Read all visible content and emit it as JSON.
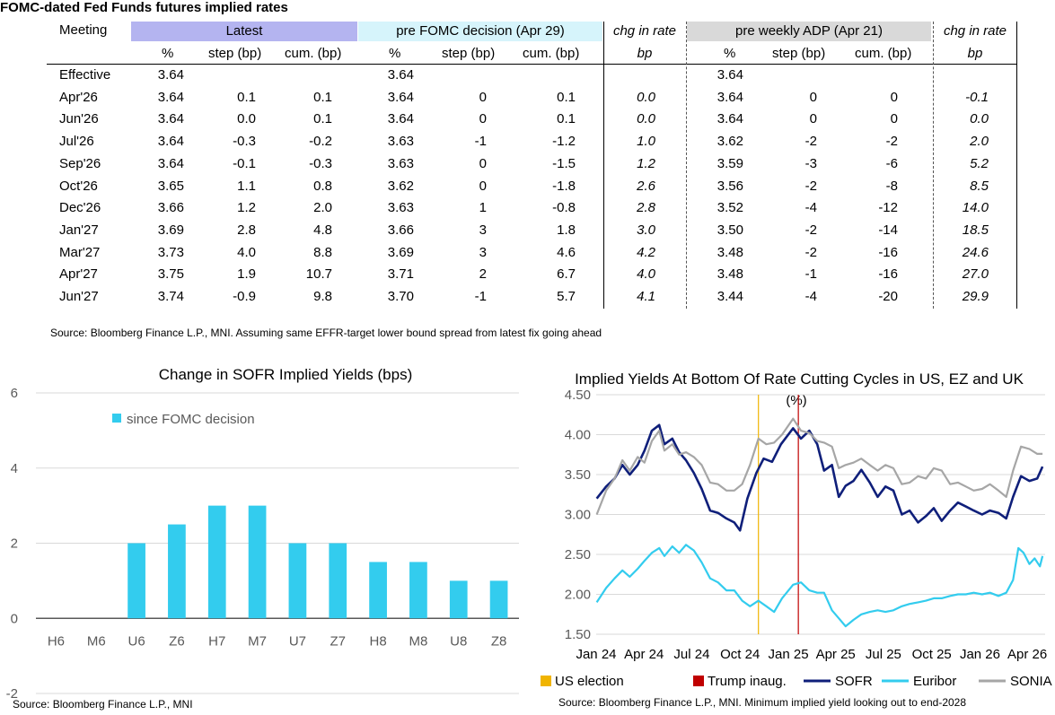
{
  "table": {
    "title": "FOMC-dated Fed Funds futures implied rates",
    "meeting_header": "Meeting",
    "groups": {
      "latest": "Latest",
      "pre_fomc": "pre FOMC decision (Apr 29)",
      "chg1": "chg in rate",
      "pre_adp": "pre weekly ADP (Apr 21)",
      "chg2": "chg in rate"
    },
    "subheaders": {
      "pct": "%",
      "step": "step (bp)",
      "cum": "cum. (bp)",
      "bp": "bp"
    },
    "rows": [
      [
        "Effective",
        "3.64",
        "",
        "",
        "3.64",
        "",
        "",
        "",
        "3.64",
        "",
        "",
        ""
      ],
      [
        "Apr'26",
        "3.64",
        "0.1",
        "0.1",
        "3.64",
        "0",
        "0.1",
        "0.0",
        "3.64",
        "0",
        "0",
        "-0.1"
      ],
      [
        "Jun'26",
        "3.64",
        "0.0",
        "0.1",
        "3.64",
        "0",
        "0.1",
        "0.0",
        "3.64",
        "0",
        "0",
        "0.0"
      ],
      [
        "Jul'26",
        "3.64",
        "-0.3",
        "-0.2",
        "3.63",
        "-1",
        "-1.2",
        "1.0",
        "3.62",
        "-2",
        "-2",
        "2.0"
      ],
      [
        "Sep'26",
        "3.64",
        "-0.1",
        "-0.3",
        "3.63",
        "0",
        "-1.5",
        "1.2",
        "3.59",
        "-3",
        "-6",
        "5.2"
      ],
      [
        "Oct'26",
        "3.65",
        "1.1",
        "0.8",
        "3.62",
        "0",
        "-1.8",
        "2.6",
        "3.56",
        "-2",
        "-8",
        "8.5"
      ],
      [
        "Dec'26",
        "3.66",
        "1.2",
        "2.0",
        "3.63",
        "1",
        "-0.8",
        "2.8",
        "3.52",
        "-4",
        "-12",
        "14.0"
      ],
      [
        "Jan'27",
        "3.69",
        "2.8",
        "4.8",
        "3.66",
        "3",
        "1.8",
        "3.0",
        "3.50",
        "-2",
        "-14",
        "18.5"
      ],
      [
        "Mar'27",
        "3.73",
        "4.0",
        "8.8",
        "3.69",
        "3",
        "4.6",
        "4.2",
        "3.48",
        "-2",
        "-16",
        "24.6"
      ],
      [
        "Apr'27",
        "3.75",
        "1.9",
        "10.7",
        "3.71",
        "2",
        "6.7",
        "4.0",
        "3.48",
        "-1",
        "-16",
        "27.0"
      ],
      [
        "Jun'27",
        "3.74",
        "-0.9",
        "9.8",
        "3.70",
        "-1",
        "5.7",
        "4.1",
        "3.44",
        "-4",
        "-20",
        "29.9"
      ]
    ],
    "source": "Source: Bloomberg Finance L.P., MNI. Assuming same  EFFR-target lower bound spread from latest fix going ahead",
    "colors": {
      "latest": "#b4b4f0",
      "pre_fomc": "#d6f4fb",
      "pre_adp": "#d9d9d9"
    }
  },
  "chart_data": [
    {
      "type": "bar",
      "title": "Change in SOFR Implied Yields (bps)",
      "categories": [
        "H6",
        "M6",
        "U6",
        "Z6",
        "H7",
        "M7",
        "U7",
        "Z7",
        "H8",
        "M8",
        "U8",
        "Z8"
      ],
      "series": [
        {
          "name": "since FOMC decision",
          "values": [
            0,
            0,
            2,
            2.5,
            3,
            3,
            2,
            2,
            1.5,
            1.5,
            1,
            1
          ],
          "color": "#33ccee"
        }
      ],
      "ylim": [
        -2,
        6
      ],
      "yticks": [
        -2,
        0,
        2,
        4,
        6
      ],
      "grid": true,
      "legend": "top-left",
      "source": "Source: Bloomberg Finance L.P., MNI"
    },
    {
      "type": "line",
      "title": "Implied Yields At Bottom Of Rate Cutting Cycles in US, EZ and UK",
      "subtitle": "(%)",
      "ylim": [
        1.5,
        4.5
      ],
      "yticks": [
        "1.50",
        "2.00",
        "2.50",
        "3.00",
        "3.50",
        "4.00",
        "4.50"
      ],
      "xticks": [
        "Jan 24",
        "Apr 24",
        "Jul 24",
        "Oct 24",
        "Jan 25",
        "Apr 25",
        "Jul 25",
        "Oct 25",
        "Jan 26",
        "Apr 26"
      ],
      "grid": true,
      "legend": "bottom",
      "events": [
        {
          "name": "US election",
          "date": "2024-11-05",
          "color": "#f0b400"
        },
        {
          "name": "Trump inaug.",
          "date": "2025-01-20",
          "color": "#c00000"
        }
      ],
      "series": [
        {
          "name": "SOFR",
          "color": "#0f1f7a",
          "points": [
            [
              "2024-01-02",
              3.2
            ],
            [
              "2024-01-20",
              3.35
            ],
            [
              "2024-02-05",
              3.45
            ],
            [
              "2024-02-20",
              3.62
            ],
            [
              "2024-03-05",
              3.5
            ],
            [
              "2024-03-20",
              3.62
            ],
            [
              "2024-04-02",
              3.8
            ],
            [
              "2024-04-16",
              4.05
            ],
            [
              "2024-04-30",
              4.12
            ],
            [
              "2024-05-10",
              3.88
            ],
            [
              "2024-05-25",
              3.95
            ],
            [
              "2024-06-07",
              3.78
            ],
            [
              "2024-06-20",
              3.68
            ],
            [
              "2024-07-05",
              3.52
            ],
            [
              "2024-07-20",
              3.32
            ],
            [
              "2024-08-05",
              3.05
            ],
            [
              "2024-08-20",
              3.02
            ],
            [
              "2024-09-05",
              2.95
            ],
            [
              "2024-09-20",
              2.9
            ],
            [
              "2024-10-01",
              2.8
            ],
            [
              "2024-10-15",
              3.2
            ],
            [
              "2024-11-01",
              3.52
            ],
            [
              "2024-11-15",
              3.7
            ],
            [
              "2024-12-01",
              3.66
            ],
            [
              "2024-12-18",
              3.88
            ],
            [
              "2025-01-10",
              4.08
            ],
            [
              "2025-01-25",
              3.95
            ],
            [
              "2025-02-10",
              4.05
            ],
            [
              "2025-02-25",
              3.88
            ],
            [
              "2025-03-10",
              3.55
            ],
            [
              "2025-03-25",
              3.62
            ],
            [
              "2025-04-07",
              3.22
            ],
            [
              "2025-04-20",
              3.36
            ],
            [
              "2025-05-05",
              3.42
            ],
            [
              "2025-05-20",
              3.56
            ],
            [
              "2025-06-05",
              3.4
            ],
            [
              "2025-06-20",
              3.22
            ],
            [
              "2025-07-05",
              3.35
            ],
            [
              "2025-07-20",
              3.3
            ],
            [
              "2025-08-05",
              3.0
            ],
            [
              "2025-08-20",
              3.05
            ],
            [
              "2025-09-05",
              2.9
            ],
            [
              "2025-09-20",
              2.98
            ],
            [
              "2025-10-05",
              3.08
            ],
            [
              "2025-10-20",
              2.92
            ],
            [
              "2025-11-05",
              3.05
            ],
            [
              "2025-11-20",
              3.15
            ],
            [
              "2025-12-05",
              3.1
            ],
            [
              "2025-12-20",
              3.05
            ],
            [
              "2026-01-05",
              3.0
            ],
            [
              "2026-01-20",
              3.05
            ],
            [
              "2026-02-05",
              3.02
            ],
            [
              "2026-02-20",
              2.95
            ],
            [
              "2026-03-05",
              3.22
            ],
            [
              "2026-03-20",
              3.48
            ],
            [
              "2026-04-05",
              3.42
            ],
            [
              "2026-04-20",
              3.45
            ],
            [
              "2026-04-30",
              3.6
            ]
          ]
        },
        {
          "name": "Euribor",
          "color": "#33ccee",
          "points": [
            [
              "2024-01-02",
              1.9
            ],
            [
              "2024-01-20",
              2.08
            ],
            [
              "2024-02-05",
              2.2
            ],
            [
              "2024-02-20",
              2.3
            ],
            [
              "2024-03-05",
              2.22
            ],
            [
              "2024-03-20",
              2.32
            ],
            [
              "2024-04-02",
              2.42
            ],
            [
              "2024-04-16",
              2.52
            ],
            [
              "2024-04-30",
              2.58
            ],
            [
              "2024-05-10",
              2.48
            ],
            [
              "2024-05-25",
              2.6
            ],
            [
              "2024-06-07",
              2.52
            ],
            [
              "2024-06-20",
              2.62
            ],
            [
              "2024-07-05",
              2.55
            ],
            [
              "2024-07-20",
              2.4
            ],
            [
              "2024-08-05",
              2.2
            ],
            [
              "2024-08-20",
              2.15
            ],
            [
              "2024-09-05",
              2.05
            ],
            [
              "2024-09-20",
              2.05
            ],
            [
              "2024-10-05",
              1.92
            ],
            [
              "2024-10-20",
              1.85
            ],
            [
              "2024-11-05",
              1.92
            ],
            [
              "2024-11-20",
              1.85
            ],
            [
              "2024-12-05",
              1.78
            ],
            [
              "2024-12-20",
              1.95
            ],
            [
              "2025-01-10",
              2.12
            ],
            [
              "2025-01-25",
              2.15
            ],
            [
              "2025-02-10",
              2.05
            ],
            [
              "2025-02-25",
              2.02
            ],
            [
              "2025-03-10",
              2.02
            ],
            [
              "2025-03-25",
              1.8
            ],
            [
              "2025-04-07",
              1.7
            ],
            [
              "2025-04-20",
              1.6
            ],
            [
              "2025-05-05",
              1.68
            ],
            [
              "2025-05-20",
              1.75
            ],
            [
              "2025-06-05",
              1.78
            ],
            [
              "2025-06-20",
              1.8
            ],
            [
              "2025-07-05",
              1.78
            ],
            [
              "2025-07-20",
              1.8
            ],
            [
              "2025-08-05",
              1.85
            ],
            [
              "2025-08-20",
              1.88
            ],
            [
              "2025-09-05",
              1.9
            ],
            [
              "2025-09-20",
              1.92
            ],
            [
              "2025-10-05",
              1.95
            ],
            [
              "2025-10-20",
              1.95
            ],
            [
              "2025-11-05",
              1.98
            ],
            [
              "2025-11-20",
              2.0
            ],
            [
              "2025-12-05",
              2.0
            ],
            [
              "2025-12-20",
              2.02
            ],
            [
              "2026-01-05",
              2.0
            ],
            [
              "2026-01-20",
              2.02
            ],
            [
              "2026-02-05",
              1.98
            ],
            [
              "2026-02-20",
              2.02
            ],
            [
              "2026-03-05",
              2.18
            ],
            [
              "2026-03-15",
              2.58
            ],
            [
              "2026-03-25",
              2.52
            ],
            [
              "2026-04-05",
              2.38
            ],
            [
              "2026-04-15",
              2.45
            ],
            [
              "2026-04-25",
              2.35
            ],
            [
              "2026-04-30",
              2.48
            ]
          ]
        },
        {
          "name": "SONIA",
          "color": "#a6a6a6",
          "points": [
            [
              "2024-01-02",
              3.0
            ],
            [
              "2024-01-20",
              3.3
            ],
            [
              "2024-02-05",
              3.45
            ],
            [
              "2024-02-20",
              3.68
            ],
            [
              "2024-03-05",
              3.55
            ],
            [
              "2024-03-20",
              3.72
            ],
            [
              "2024-04-02",
              3.65
            ],
            [
              "2024-04-16",
              3.92
            ],
            [
              "2024-04-30",
              4.05
            ],
            [
              "2024-05-10",
              3.8
            ],
            [
              "2024-05-25",
              3.88
            ],
            [
              "2024-06-07",
              3.75
            ],
            [
              "2024-06-20",
              3.78
            ],
            [
              "2024-07-05",
              3.72
            ],
            [
              "2024-07-20",
              3.62
            ],
            [
              "2024-08-05",
              3.4
            ],
            [
              "2024-08-20",
              3.38
            ],
            [
              "2024-09-05",
              3.3
            ],
            [
              "2024-09-20",
              3.3
            ],
            [
              "2024-10-05",
              3.38
            ],
            [
              "2024-10-20",
              3.62
            ],
            [
              "2024-11-05",
              3.95
            ],
            [
              "2024-11-20",
              3.88
            ],
            [
              "2024-12-05",
              3.9
            ],
            [
              "2024-12-20",
              4.0
            ],
            [
              "2025-01-10",
              4.2
            ],
            [
              "2025-01-25",
              4.05
            ],
            [
              "2025-02-10",
              4.02
            ],
            [
              "2025-02-25",
              3.92
            ],
            [
              "2025-03-10",
              3.9
            ],
            [
              "2025-03-25",
              3.85
            ],
            [
              "2025-04-07",
              3.58
            ],
            [
              "2025-04-20",
              3.62
            ],
            [
              "2025-05-05",
              3.65
            ],
            [
              "2025-05-20",
              3.7
            ],
            [
              "2025-06-05",
              3.62
            ],
            [
              "2025-06-20",
              3.55
            ],
            [
              "2025-07-05",
              3.62
            ],
            [
              "2025-07-20",
              3.58
            ],
            [
              "2025-08-05",
              3.38
            ],
            [
              "2025-08-20",
              3.4
            ],
            [
              "2025-09-05",
              3.48
            ],
            [
              "2025-09-20",
              3.45
            ],
            [
              "2025-10-05",
              3.58
            ],
            [
              "2025-10-20",
              3.55
            ],
            [
              "2025-11-05",
              3.38
            ],
            [
              "2025-11-20",
              3.4
            ],
            [
              "2025-12-05",
              3.35
            ],
            [
              "2025-12-20",
              3.3
            ],
            [
              "2026-01-05",
              3.32
            ],
            [
              "2026-01-20",
              3.38
            ],
            [
              "2026-02-05",
              3.3
            ],
            [
              "2026-02-20",
              3.22
            ],
            [
              "2026-03-05",
              3.55
            ],
            [
              "2026-03-20",
              3.85
            ],
            [
              "2026-04-05",
              3.82
            ],
            [
              "2026-04-20",
              3.76
            ],
            [
              "2026-04-30",
              3.76
            ]
          ]
        }
      ],
      "source": "Source: Bloomberg Finance L.P., MNI. Minimum implied yield looking out to end-2028"
    }
  ]
}
